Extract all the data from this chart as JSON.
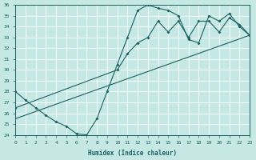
{
  "xlabel": "Humidex (Indice chaleur)",
  "xlim": [
    0,
    23
  ],
  "ylim": [
    24,
    36
  ],
  "xticks": [
    0,
    1,
    2,
    3,
    4,
    5,
    6,
    7,
    8,
    9,
    10,
    11,
    12,
    13,
    14,
    15,
    16,
    17,
    18,
    19,
    20,
    21,
    22,
    23
  ],
  "yticks": [
    24,
    25,
    26,
    27,
    28,
    29,
    30,
    31,
    32,
    33,
    34,
    35,
    36
  ],
  "bg_color": "#c5e8e5",
  "line_color": "#1a6060",
  "line1_x": [
    0,
    1,
    2,
    3,
    4,
    5,
    6,
    7,
    8,
    9,
    10,
    11,
    12,
    13,
    14,
    15,
    16,
    17,
    18,
    19,
    20,
    21,
    22,
    23
  ],
  "line1_y": [
    28.0,
    27.2,
    26.5,
    25.8,
    25.2,
    24.8,
    24.1,
    24.0,
    25.5,
    28.0,
    30.5,
    33.0,
    35.5,
    36.0,
    35.7,
    35.5,
    35.0,
    32.8,
    32.5,
    35.0,
    34.5,
    35.2,
    34.0,
    33.2
  ],
  "line2_x": [
    0,
    10,
    11,
    12,
    13,
    14,
    15,
    16,
    17,
    18,
    19,
    20,
    21,
    22,
    23
  ],
  "line2_y": [
    26.5,
    30.0,
    31.5,
    32.5,
    33.0,
    34.5,
    33.5,
    34.5,
    33.0,
    34.5,
    34.5,
    33.5,
    34.8,
    34.2,
    33.2
  ],
  "line3_x": [
    0,
    23
  ],
  "line3_y": [
    25.5,
    33.2
  ]
}
